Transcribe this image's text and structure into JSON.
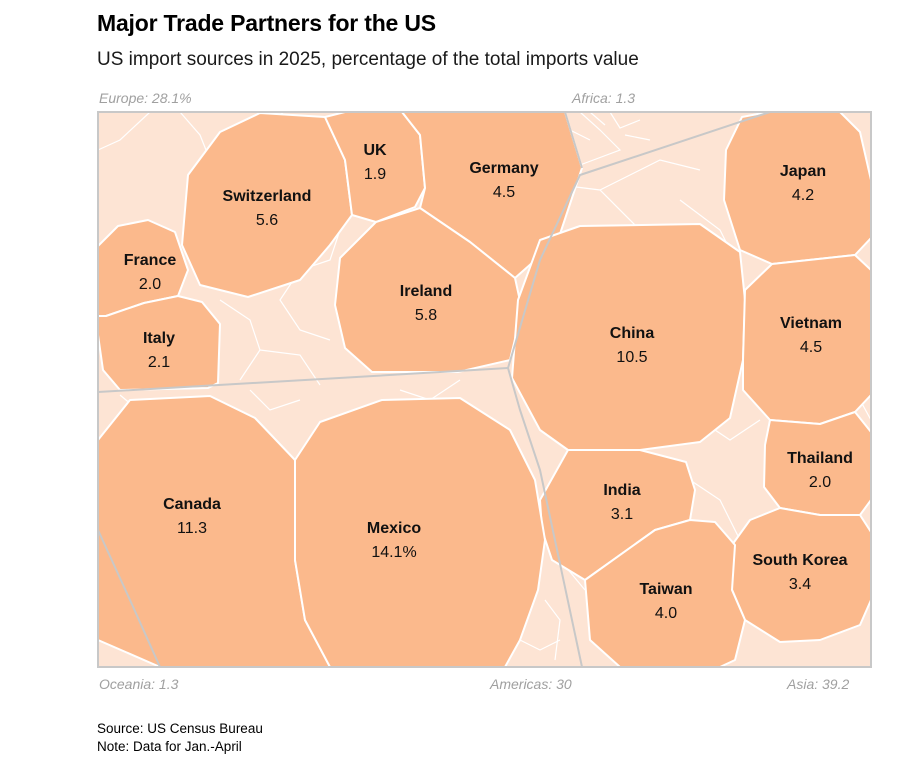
{
  "header": {
    "title": "Major Trade Partners for the US",
    "subtitle": "US import sources in 2025, percentage of the total imports value"
  },
  "footer": {
    "source": "Source: US Census Bureau",
    "note": "Note: Data for Jan.-April"
  },
  "colors": {
    "cell": "#fbb98c",
    "background": "#fde4d4",
    "cell_stroke": "#ffffff",
    "region_border": "#c8c8c8",
    "region_label": "#a0a0a0"
  },
  "chart_data": {
    "type": "voronoi-treemap",
    "title": "Major Trade Partners for the US",
    "subtitle": "US import sources in 2025, percentage of the total imports value",
    "unit": "percent of total imports value",
    "regions": [
      {
        "name": "Europe",
        "label": "Europe: 28.1%",
        "value": 28.1
      },
      {
        "name": "Africa",
        "label": "Africa: 1.3",
        "value": 1.3
      },
      {
        "name": "Oceania",
        "label": "Oceania: 1.3",
        "value": 1.3
      },
      {
        "name": "Americas",
        "label": "Americas: 30",
        "value": 30
      },
      {
        "name": "Asia",
        "label": "Asia: 39.2",
        "value": 39.2
      }
    ],
    "countries": [
      {
        "name": "Switzerland",
        "value": 5.6,
        "label": "5.6",
        "region": "Europe"
      },
      {
        "name": "UK",
        "value": 1.9,
        "label": "1.9",
        "region": "Europe"
      },
      {
        "name": "Germany",
        "value": 4.5,
        "label": "4.5",
        "region": "Europe"
      },
      {
        "name": "France",
        "value": 2.0,
        "label": "2.0",
        "region": "Europe"
      },
      {
        "name": "Ireland",
        "value": 5.8,
        "label": "5.8",
        "region": "Europe"
      },
      {
        "name": "Italy",
        "value": 2.1,
        "label": "2.1",
        "region": "Europe"
      },
      {
        "name": "Japan",
        "value": 4.2,
        "label": "4.2",
        "region": "Asia"
      },
      {
        "name": "China",
        "value": 10.5,
        "label": "10.5",
        "region": "Asia"
      },
      {
        "name": "Vietnam",
        "value": 4.5,
        "label": "4.5",
        "region": "Asia"
      },
      {
        "name": "Thailand",
        "value": 2.0,
        "label": "2.0",
        "region": "Asia"
      },
      {
        "name": "India",
        "value": 3.1,
        "label": "3.1",
        "region": "Asia"
      },
      {
        "name": "South Korea",
        "value": 3.4,
        "label": "3.4",
        "region": "Asia"
      },
      {
        "name": "Taiwan",
        "value": 4.0,
        "label": "4.0",
        "region": "Asia"
      },
      {
        "name": "Canada",
        "value": 11.3,
        "label": "11.3",
        "region": "Americas"
      },
      {
        "name": "Mexico",
        "value": 14.1,
        "label": "14.1%",
        "region": "Americas"
      }
    ]
  }
}
